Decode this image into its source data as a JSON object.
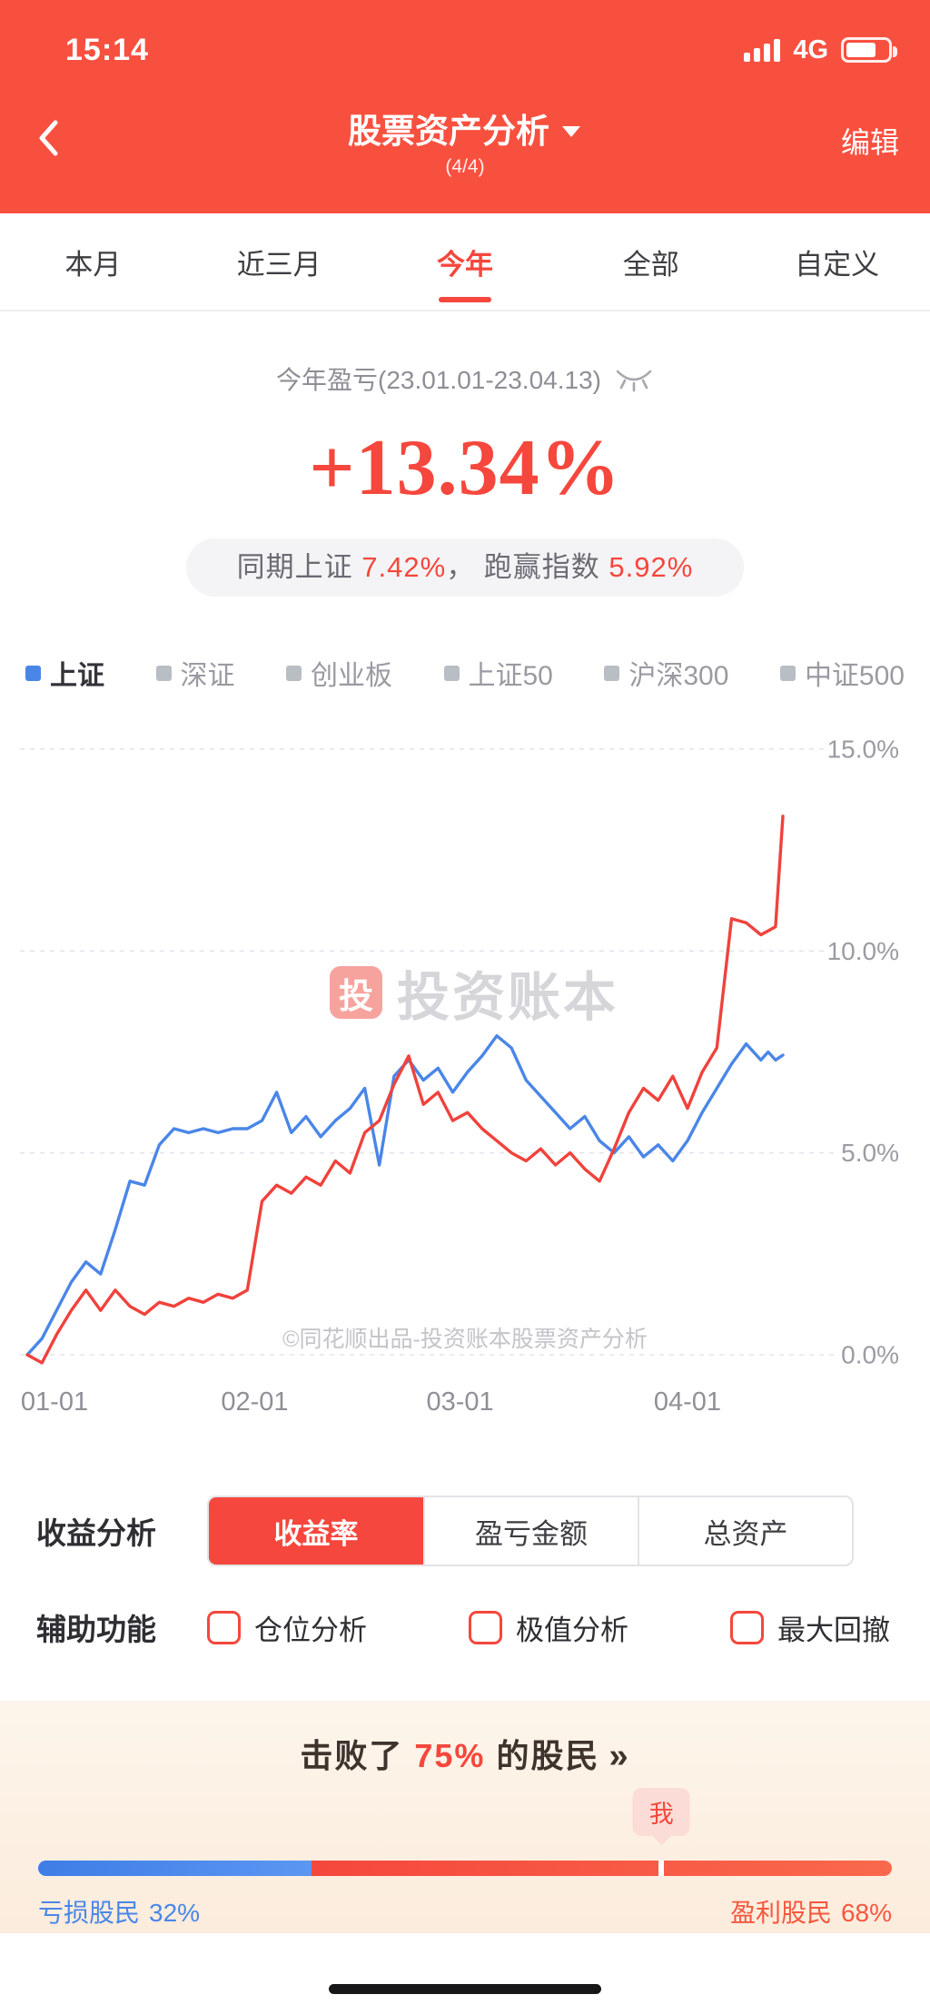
{
  "status_bar": {
    "time": "15:14",
    "network": "4G"
  },
  "header": {
    "title": "股票资产分析",
    "page_indicator": "(4/4)",
    "edit_label": "编辑"
  },
  "tabs": {
    "items": [
      "本月",
      "近三月",
      "今年",
      "全部",
      "自定义"
    ],
    "active_index": 2
  },
  "summary": {
    "period_label": "今年盈亏(23.01.01-23.04.13)",
    "return_value": "+13.34%",
    "compare_prefix": "同期上证 ",
    "compare_index_value": "7.42%",
    "compare_middle": "， 跑赢指数 ",
    "compare_outperform_value": "5.92%"
  },
  "legend": {
    "items": [
      {
        "label": "上证",
        "color": "#4a86e8",
        "text_color": "#33333a",
        "active": true
      },
      {
        "label": "深证",
        "color": "#b9bdc4",
        "text_color": "#9a9aa2",
        "active": false
      },
      {
        "label": "创业板",
        "color": "#b9bdc4",
        "text_color": "#9a9aa2",
        "active": false
      },
      {
        "label": "上证50",
        "color": "#b9bdc4",
        "text_color": "#9a9aa2",
        "active": false
      },
      {
        "label": "沪深300",
        "color": "#b9bdc4",
        "text_color": "#9a9aa2",
        "active": false
      },
      {
        "label": "中证500",
        "color": "#b9bdc4",
        "text_color": "#9a9aa2",
        "active": false
      }
    ]
  },
  "chart_data": {
    "type": "line",
    "x_unit": "days since 01-01 (2023)",
    "x": [
      0,
      2,
      4,
      6,
      8,
      10,
      12,
      14,
      16,
      18,
      20,
      22,
      24,
      26,
      28,
      30,
      32,
      34,
      36,
      38,
      40,
      42,
      44,
      46,
      48,
      50,
      52,
      54,
      56,
      58,
      60,
      62,
      64,
      66,
      68,
      70,
      72,
      74,
      76,
      78,
      80,
      82,
      84,
      86,
      88,
      90,
      92,
      94,
      96,
      98,
      100,
      101,
      102,
      103
    ],
    "series": [
      {
        "name": "上证",
        "color": "#4a86e8",
        "values": [
          0,
          0.4,
          1.1,
          1.8,
          2.3,
          2.0,
          3.1,
          4.3,
          4.2,
          5.2,
          5.6,
          5.5,
          5.6,
          5.5,
          5.6,
          5.6,
          5.8,
          6.5,
          5.5,
          5.9,
          5.4,
          5.8,
          6.1,
          6.6,
          4.7,
          6.9,
          7.3,
          6.8,
          7.1,
          6.5,
          7.0,
          7.4,
          7.9,
          7.6,
          6.8,
          6.4,
          6.0,
          5.6,
          5.9,
          5.3,
          5.0,
          5.4,
          4.9,
          5.2,
          4.8,
          5.3,
          6.0,
          6.6,
          7.2,
          7.7,
          7.3,
          7.5,
          7.3,
          7.42
        ]
      },
      {
        "name": "我的收益率",
        "color": "#f0423c",
        "values": [
          0,
          -0.2,
          0.5,
          1.1,
          1.6,
          1.1,
          1.6,
          1.2,
          1.0,
          1.3,
          1.2,
          1.4,
          1.3,
          1.5,
          1.4,
          1.6,
          3.8,
          4.2,
          4.0,
          4.4,
          4.2,
          4.8,
          4.5,
          5.5,
          5.8,
          6.7,
          7.4,
          6.2,
          6.5,
          5.8,
          6.0,
          5.6,
          5.3,
          5.0,
          4.8,
          5.1,
          4.7,
          5.0,
          4.6,
          4.3,
          5.1,
          6.0,
          6.6,
          6.3,
          6.9,
          6.1,
          7.0,
          7.6,
          10.8,
          10.7,
          10.4,
          10.5,
          10.6,
          13.34
        ]
      }
    ],
    "x_ticks": [
      {
        "day": 0,
        "label": "01-01"
      },
      {
        "day": 31,
        "label": "02-01"
      },
      {
        "day": 59,
        "label": "03-01"
      },
      {
        "day": 90,
        "label": "04-01"
      }
    ],
    "y_ticks": [
      {
        "value": 15,
        "label": "15.0%"
      },
      {
        "value": 10,
        "label": "10.0%"
      },
      {
        "value": 5,
        "label": "5.0%"
      },
      {
        "value": 0,
        "label": "0.0%"
      }
    ],
    "ylim": [
      -1.4,
      15.9
    ],
    "grid": "dashed-horizontal",
    "legend_position": "top"
  },
  "watermark": {
    "logo_glyph": "投",
    "brand": "投资账本",
    "copyright": "©同花顺出品-投资账本股票资产分析"
  },
  "controls": {
    "row1_label": "收益分析",
    "segments": [
      "收益率",
      "盈亏金额",
      "总资产"
    ],
    "active_segment": 0,
    "row2_label": "辅助功能",
    "checkboxes": [
      "仓位分析",
      "极值分析",
      "最大回撤"
    ]
  },
  "banner": {
    "beat_prefix": "击败了 ",
    "beat_value": "75%",
    "beat_suffix": " 的股民",
    "arrows": "»",
    "me_label": "我",
    "loss_label": "亏损股民",
    "loss_value": "32%",
    "profit_label": "盈利股民",
    "profit_value": "68%",
    "loss_pct": 32,
    "me_position_pct": 73
  },
  "colors": {
    "header_red": "#f8503f",
    "accent_red": "#f5473d",
    "line_red": "#f0423c",
    "line_blue": "#4a86e8"
  }
}
